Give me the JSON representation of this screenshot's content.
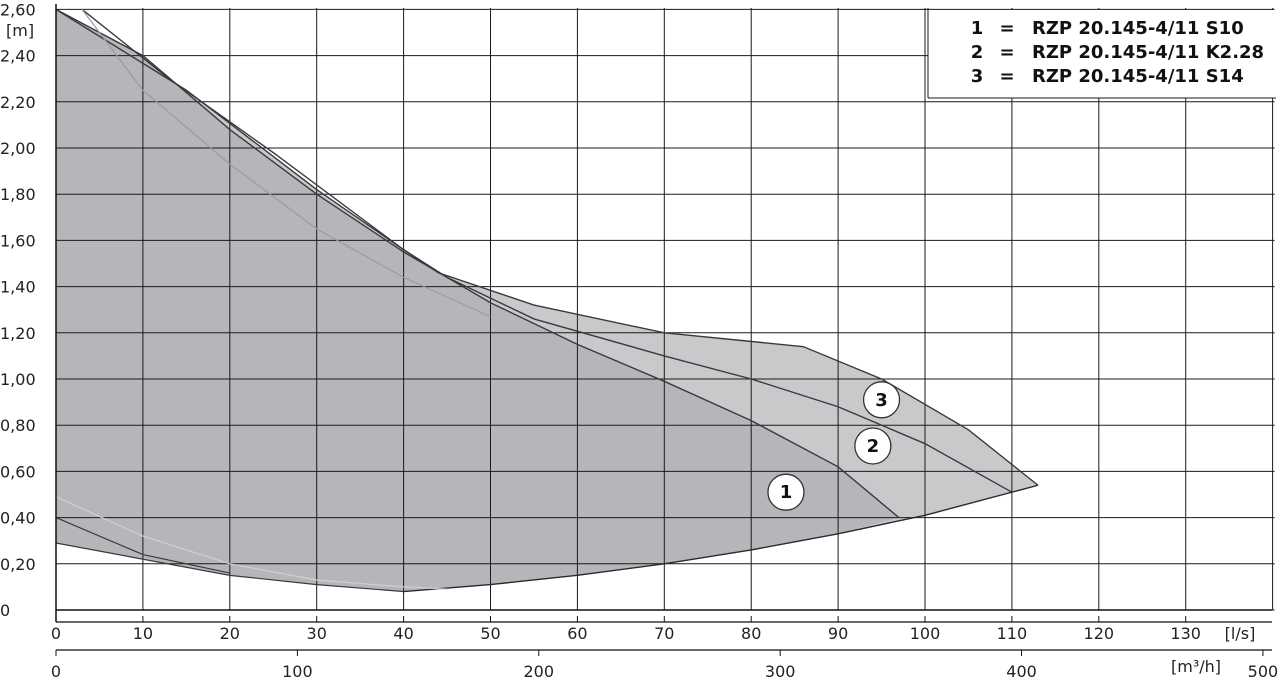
{
  "chart_data": {
    "type": "area",
    "ylabel": "[m]",
    "xlabel": "[l/s]",
    "x2label": "[m³/h]",
    "xlim": [
      0,
      140
    ],
    "ylim": [
      0,
      2.6
    ],
    "x2lim": [
      0,
      504
    ],
    "y_ticks": [
      "0",
      "0,20",
      "0,40",
      "0,60",
      "0,80",
      "1,00",
      "1,20",
      "1,40",
      "1,60",
      "1,80",
      "2,00",
      "2,20",
      "2,40",
      "2,60"
    ],
    "x_ticks": [
      "0",
      "10",
      "20",
      "30",
      "40",
      "50",
      "60",
      "70",
      "80",
      "90",
      "100",
      "110",
      "120",
      "130"
    ],
    "x2_ticks": [
      "0",
      "100",
      "200",
      "300",
      "400",
      "500"
    ],
    "grid": true,
    "legend_position": "top-right",
    "legend": [
      {
        "num": "1",
        "eq": "=",
        "name": "RZP 20.145-4/11 S10"
      },
      {
        "num": "2",
        "eq": "=",
        "name": "RZP 20.145-4/11 K2.28"
      },
      {
        "num": "3",
        "eq": "=",
        "name": "RZP 20.145-4/11 S14"
      }
    ],
    "series": [
      {
        "id": "1",
        "values": [
          [
            0,
            2.6
          ],
          [
            10,
            2.4
          ],
          [
            20,
            2.08
          ],
          [
            30,
            1.8
          ],
          [
            40,
            1.55
          ],
          [
            50,
            1.33
          ],
          [
            60,
            1.15
          ],
          [
            70,
            0.99
          ],
          [
            80,
            0.82
          ],
          [
            90,
            0.62
          ],
          [
            97,
            0.4
          ]
        ]
      },
      {
        "id": "2",
        "values": [
          [
            3,
            2.6
          ],
          [
            13,
            2.3
          ],
          [
            25,
            1.98
          ],
          [
            40,
            1.56
          ],
          [
            45,
            1.44
          ],
          [
            55,
            1.26
          ],
          [
            70,
            1.1
          ],
          [
            80,
            1.0
          ],
          [
            90,
            0.88
          ],
          [
            100,
            0.72
          ],
          [
            110,
            0.51
          ]
        ]
      },
      {
        "id": "3",
        "values": [
          [
            0,
            2.6
          ],
          [
            15,
            2.25
          ],
          [
            30,
            1.82
          ],
          [
            40,
            1.56
          ],
          [
            44,
            1.46
          ],
          [
            55,
            1.32
          ],
          [
            70,
            1.2
          ],
          [
            86,
            1.14
          ],
          [
            95,
            1.0
          ],
          [
            105,
            0.78
          ],
          [
            113,
            0.54
          ]
        ]
      }
    ],
    "system_curve": [
      [
        40,
        0.08
      ],
      [
        50,
        0.11
      ],
      [
        60,
        0.15
      ],
      [
        70,
        0.2
      ],
      [
        80,
        0.26
      ],
      [
        90,
        0.33
      ],
      [
        100,
        0.41
      ],
      [
        113,
        0.54
      ]
    ],
    "lower_boundary": [
      [
        0,
        0.29
      ],
      [
        20,
        0.15
      ],
      [
        30,
        0.11
      ],
      [
        40,
        0.08
      ]
    ],
    "secondary_boundary": [
      [
        0,
        0.4
      ],
      [
        10,
        0.24
      ],
      [
        20,
        0.16
      ]
    ],
    "efficiency_curve": [
      [
        3,
        2.6
      ],
      [
        10,
        2.25
      ],
      [
        20,
        1.93
      ],
      [
        30,
        1.65
      ],
      [
        40,
        1.44
      ],
      [
        50,
        1.27
      ]
    ],
    "efficiency_curve_low": [
      [
        0,
        0.49
      ],
      [
        10,
        0.32
      ],
      [
        20,
        0.2
      ],
      [
        30,
        0.13
      ],
      [
        40,
        0.1
      ],
      [
        45,
        0.09
      ]
    ],
    "markers": [
      {
        "label": "1",
        "x": 84,
        "y": 0.51
      },
      {
        "label": "2",
        "x": 94,
        "y": 0.71
      },
      {
        "label": "3",
        "x": 95,
        "y": 0.91
      }
    ],
    "fill_colors": {
      "envelope": "#c9c9cc",
      "inner": "#b6b6ba"
    }
  }
}
